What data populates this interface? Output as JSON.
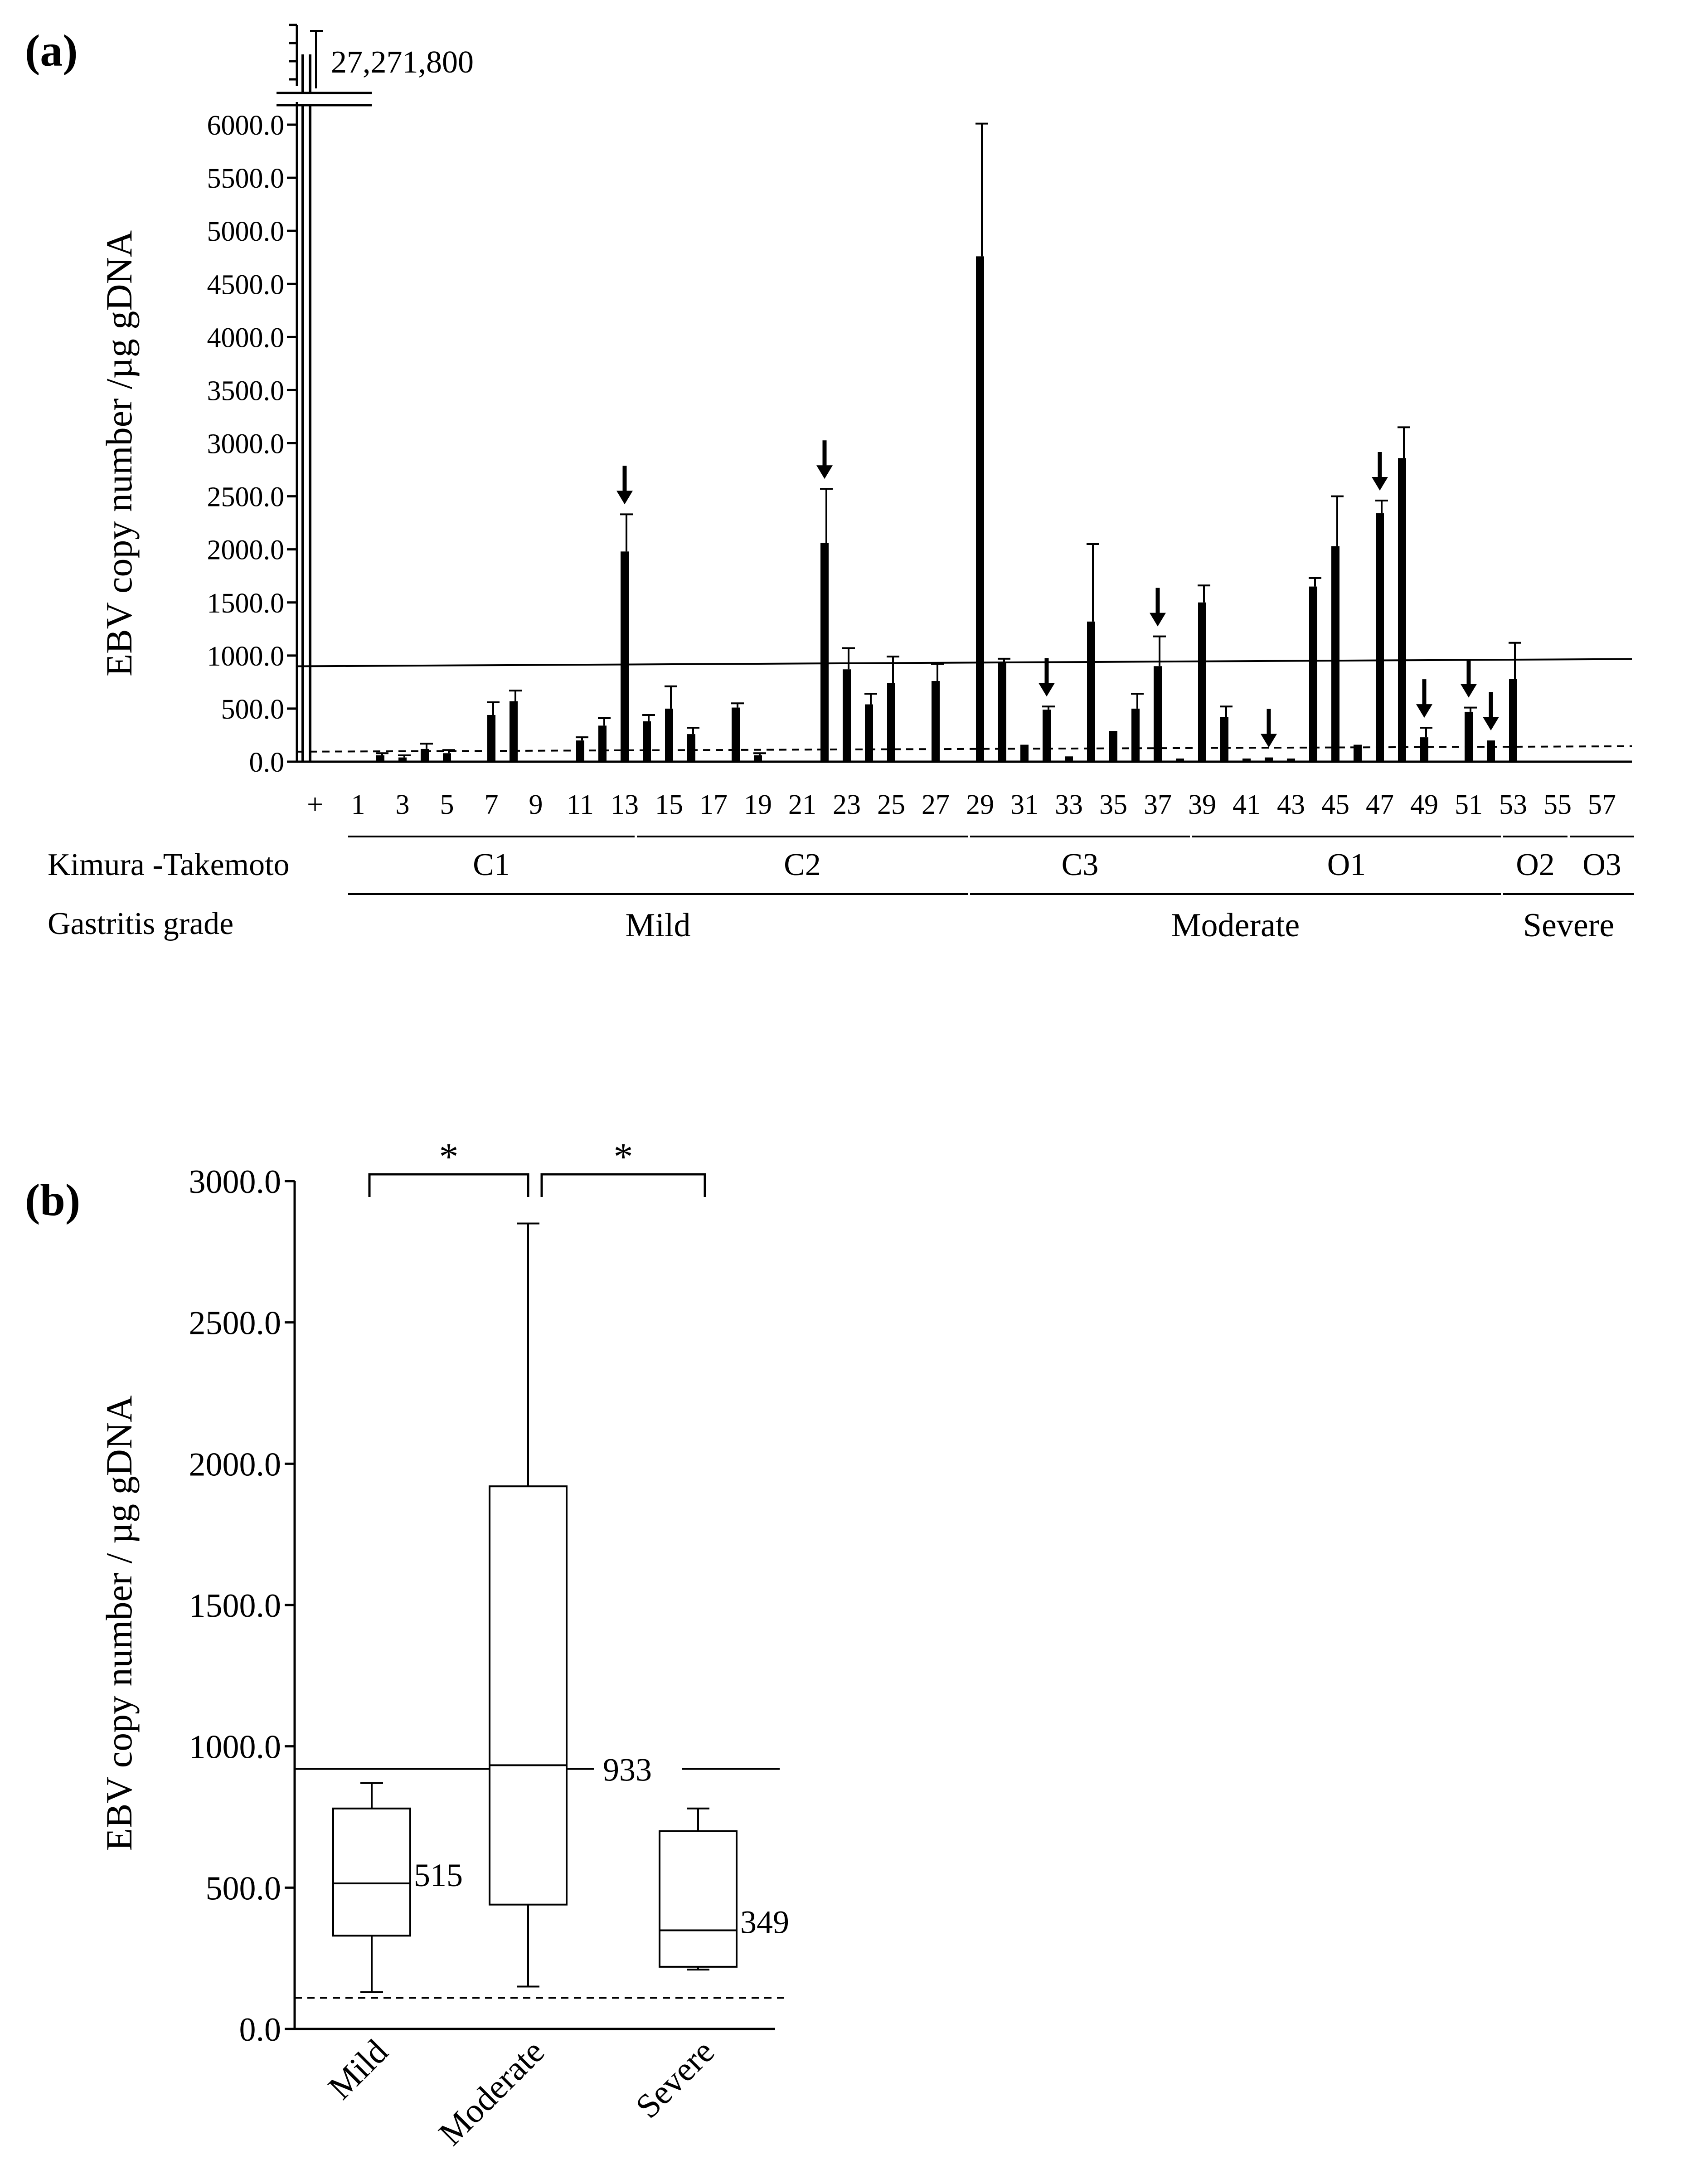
{
  "panel_a_label": "(a)",
  "panel_b_label": "(b)",
  "chart_data": [
    {
      "type": "bar",
      "panel": "(a)",
      "ylabel": "EBV copy number /µg gDNA",
      "ylim": [
        0,
        6000
      ],
      "yticks": [
        "0.0",
        "500.0",
        "1000.0",
        "1500.0",
        "2000.0",
        "2500.0",
        "3000.0",
        "3500.0",
        "4000.0",
        "4500.0",
        "5000.0",
        "5500.0",
        "6000.0"
      ],
      "broken_axis_value": "27,271,800",
      "positive_control_label": "+",
      "tick_labels": [
        "1",
        "3",
        "5",
        "7",
        "9",
        "11",
        "13",
        "15",
        "17",
        "19",
        "21",
        "23",
        "25",
        "27",
        "29",
        "31",
        "33",
        "35",
        "37",
        "39",
        "41",
        "43",
        "45",
        "47",
        "49",
        "51",
        "53",
        "55",
        "57"
      ],
      "samples": [
        1,
        2,
        3,
        4,
        5,
        6,
        7,
        8,
        9,
        10,
        11,
        12,
        13,
        14,
        15,
        16,
        17,
        18,
        19,
        20,
        21,
        22,
        23,
        24,
        25,
        26,
        27,
        28,
        29,
        30,
        31,
        32,
        33,
        34,
        35,
        36,
        37,
        38,
        39,
        40,
        41,
        42,
        43,
        44,
        45,
        46,
        47,
        48,
        49,
        50,
        51,
        52,
        53,
        54,
        55,
        56,
        57,
        58
      ],
      "values": [
        5,
        60,
        40,
        120,
        80,
        0,
        440,
        570,
        10,
        10,
        200,
        340,
        1980,
        380,
        500,
        260,
        10,
        510,
        60,
        10,
        10,
        2060,
        870,
        540,
        740,
        10,
        760,
        10,
        4760,
        940,
        160,
        490,
        50,
        1320,
        290,
        500,
        900,
        30,
        1500,
        420,
        30,
        40,
        30,
        1650,
        2030,
        160,
        2340,
        2860,
        230,
        10,
        470,
        200,
        780,
        10,
        10,
        10,
        10,
        10
      ],
      "errors": [
        0,
        20,
        20,
        50,
        30,
        0,
        120,
        100,
        0,
        0,
        30,
        70,
        350,
        60,
        210,
        60,
        0,
        40,
        20,
        0,
        0,
        510,
        200,
        100,
        250,
        0,
        160,
        0,
        1250,
        30,
        0,
        30,
        0,
        730,
        0,
        140,
        280,
        0,
        160,
        100,
        0,
        0,
        0,
        80,
        470,
        0,
        120,
        290,
        90,
        0,
        40,
        0,
        340,
        0,
        0,
        0,
        0,
        0
      ],
      "arrow_samples": [
        13,
        22,
        32,
        37,
        42,
        47,
        49,
        51,
        52
      ],
      "threshold_solid": 933,
      "threshold_dashed": 120,
      "groups": {
        "classification_title": "Kimura -Takemoto",
        "classification": [
          {
            "label": "C1",
            "from": 1,
            "to": 13
          },
          {
            "label": "C2",
            "from": 14,
            "to": 28
          },
          {
            "label": "C3",
            "from": 29,
            "to": 38
          },
          {
            "label": "O1",
            "from": 39,
            "to": 52
          },
          {
            "label": "O2",
            "from": 53,
            "to": 55
          },
          {
            "label": "O3",
            "from": 56,
            "to": 58
          }
        ],
        "grade_title": "Gastritis grade",
        "grades": [
          {
            "label": "Mild",
            "from": 1,
            "to": 28
          },
          {
            "label": "Moderate",
            "from": 29,
            "to": 52
          },
          {
            "label": "Severe",
            "from": 53,
            "to": 58
          }
        ]
      }
    },
    {
      "type": "box",
      "panel": "(b)",
      "ylabel": "EBV copy number / µg gDNA",
      "ylim": [
        0,
        3000
      ],
      "yticks": [
        "0.0",
        "500.0",
        "1000.0",
        "1500.0",
        "2000.0",
        "2500.0",
        "3000.0"
      ],
      "categories": [
        "Mild",
        "Moderate",
        "Severe"
      ],
      "boxes": [
        {
          "name": "Mild",
          "min": 130,
          "q1": 330,
          "median": 515,
          "q3": 780,
          "max": 870,
          "median_label": "515"
        },
        {
          "name": "Moderate",
          "min": 150,
          "q1": 440,
          "median": 933,
          "q3": 1920,
          "max": 2850,
          "median_label": "933"
        },
        {
          "name": "Severe",
          "min": 210,
          "q1": 220,
          "median": 349,
          "q3": 700,
          "max": 780,
          "median_label": "349"
        }
      ],
      "threshold_solid": 920,
      "threshold_dashed": 110,
      "significance": [
        {
          "from": "Mild",
          "to": "Moderate",
          "label": "*"
        },
        {
          "from": "Moderate",
          "to": "Severe",
          "label": "*"
        }
      ]
    }
  ]
}
